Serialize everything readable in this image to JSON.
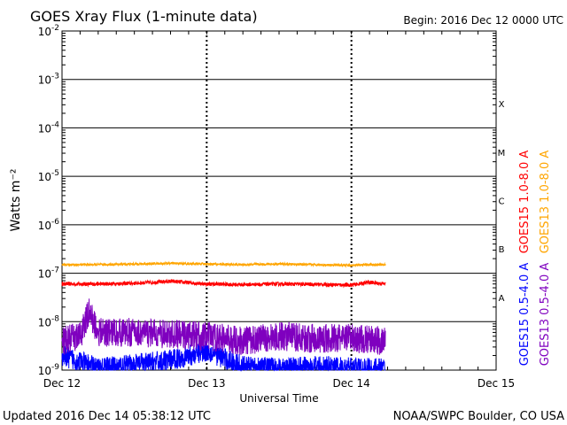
{
  "header": {
    "title": "GOES Xray Flux (1-minute data)",
    "begin": "Begin:  2016 Dec 12 0000 UTC"
  },
  "footer": {
    "updated": "Updated 2016 Dec 14 05:38:12 UTC",
    "credit": "NOAA/SWPC Boulder, CO USA"
  },
  "chart_data": {
    "type": "line",
    "title": "GOES Xray Flux (1-minute data)",
    "xlabel": "Universal Time",
    "ylabel": "Watts m⁻²",
    "yscale": "log",
    "ylim": [
      1e-09,
      0.01
    ],
    "xlim": [
      "2016-12-12T00:00",
      "2016-12-15T00:00"
    ],
    "x_ticks": [
      "Dec 12",
      "Dec 13",
      "Dec 14",
      "Dec 15"
    ],
    "y_ticks": [
      {
        "base": "10",
        "exp": "-9",
        "value": 1e-09
      },
      {
        "base": "10",
        "exp": "-8",
        "value": 1e-08
      },
      {
        "base": "10",
        "exp": "-7",
        "value": 1e-07
      },
      {
        "base": "10",
        "exp": "-6",
        "value": 1e-06
      },
      {
        "base": "10",
        "exp": "-5",
        "value": 1e-05
      },
      {
        "base": "10",
        "exp": "-4",
        "value": 0.0001
      },
      {
        "base": "10",
        "exp": "-3",
        "value": 0.001
      },
      {
        "base": "10",
        "exp": "-2",
        "value": 0.01
      }
    ],
    "flare_classes": [
      {
        "label": "A",
        "value": 1e-08
      },
      {
        "label": "B",
        "value": 1e-07
      },
      {
        "label": "C",
        "value": 1e-06
      },
      {
        "label": "M",
        "value": 1e-05
      },
      {
        "label": "X",
        "value": 0.0001
      }
    ],
    "grid": true,
    "series": [
      {
        "name": "GOES15 1.0-8.0 A",
        "color": "#ff0000",
        "x": [
          "2016-12-12T00:00",
          "2016-12-12T06:00",
          "2016-12-12T12:00",
          "2016-12-12T18:00",
          "2016-12-13T00:00",
          "2016-12-13T06:00",
          "2016-12-13T12:00",
          "2016-12-13T18:00",
          "2016-12-14T00:00",
          "2016-12-14T03:00",
          "2016-12-14T05:38"
        ],
        "y": [
          6e-08,
          6e-08,
          6.2e-08,
          6.8e-08,
          6e-08,
          5.8e-08,
          6e-08,
          5.9e-08,
          5.7e-08,
          6.5e-08,
          6e-08
        ]
      },
      {
        "name": "GOES13 1.0-8.0 A",
        "color": "#ffa500",
        "x": [
          "2016-12-12T00:00",
          "2016-12-12T06:00",
          "2016-12-12T12:00",
          "2016-12-12T18:00",
          "2016-12-13T00:00",
          "2016-12-13T06:00",
          "2016-12-13T12:00",
          "2016-12-13T18:00",
          "2016-12-14T00:00",
          "2016-12-14T03:00",
          "2016-12-14T05:38"
        ],
        "y": [
          1.5e-07,
          1.5e-07,
          1.55e-07,
          1.6e-07,
          1.55e-07,
          1.5e-07,
          1.55e-07,
          1.5e-07,
          1.45e-07,
          1.5e-07,
          1.5e-07
        ]
      },
      {
        "name": "GOES15 0.5-4.0 A",
        "color": "#0000ff",
        "x": [
          "2016-12-12T00:00",
          "2016-12-12T03:00",
          "2016-12-12T06:00",
          "2016-12-12T12:00",
          "2016-12-12T18:00",
          "2016-12-13T00:00",
          "2016-12-13T06:00",
          "2016-12-13T12:00",
          "2016-12-13T18:00",
          "2016-12-14T00:00",
          "2016-12-14T05:38"
        ],
        "y": [
          2e-09,
          1.5e-09,
          1.1e-09,
          1.3e-09,
          1.6e-09,
          2.5e-09,
          1.2e-09,
          1.1e-09,
          1.2e-09,
          1.1e-09,
          1.1e-09
        ]
      },
      {
        "name": "GOES13 0.5-4.0 A",
        "color": "#7f00bf",
        "x": [
          "2016-12-12T00:00",
          "2016-12-12T03:00",
          "2016-12-12T04:30",
          "2016-12-12T06:00",
          "2016-12-12T12:00",
          "2016-12-12T18:00",
          "2016-12-13T00:00",
          "2016-12-13T06:00",
          "2016-12-13T12:00",
          "2016-12-13T18:00",
          "2016-12-14T00:00",
          "2016-12-14T05:38"
        ],
        "y": [
          4e-09,
          5e-09,
          1.6e-08,
          6e-09,
          6e-09,
          5.5e-09,
          5e-09,
          4e-09,
          5e-09,
          4.5e-09,
          4.5e-09,
          4e-09
        ]
      }
    ]
  }
}
